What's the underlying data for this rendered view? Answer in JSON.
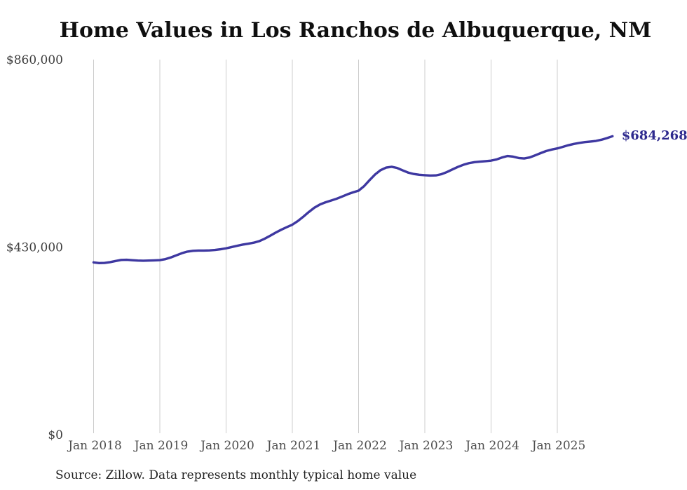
{
  "chart": {
    "title": "Home Values in Los Ranchos de Albuquerque, NM",
    "latest_value_label": "$684,268",
    "source_note": "Source: Zillow. Data represents monthly typical home value",
    "line_color": "#3e38a1",
    "latest_value_label_color": "#2e2a8e",
    "gridline_color": "#cccccc"
  },
  "chart_data": {
    "type": "line",
    "title": "Home Values in Los Ranchos de Albuquerque, NM",
    "xlabel": "",
    "ylabel": "",
    "ylim": [
      0,
      860000
    ],
    "grid": "vertical-only",
    "legend": "none",
    "x_start": "Jan 2018",
    "x_interval": "month",
    "x_ticks": [
      {
        "label": "Jan 2018",
        "month_index": 0
      },
      {
        "label": "Jan 2019",
        "month_index": 12
      },
      {
        "label": "Jan 2020",
        "month_index": 24
      },
      {
        "label": "Jan 2021",
        "month_index": 36
      },
      {
        "label": "Jan 2022",
        "month_index": 48
      },
      {
        "label": "Jan 2023",
        "month_index": 60
      },
      {
        "label": "Jan 2024",
        "month_index": 72
      },
      {
        "label": "Jan 2025",
        "month_index": 84
      }
    ],
    "y_ticks": [
      {
        "label": "$0",
        "value": 0
      },
      {
        "label": "$430,000",
        "value": 430000
      },
      {
        "label": "$860,000",
        "value": 860000
      }
    ],
    "series": [
      {
        "name": "Monthly typical home value",
        "values": [
          395000,
          393400,
          393700,
          395600,
          398200,
          400600,
          400900,
          399900,
          399100,
          398800,
          399100,
          399600,
          400200,
          402400,
          406300,
          411200,
          416100,
          419700,
          421400,
          422000,
          422100,
          422400,
          423400,
          425100,
          427200,
          430100,
          433000,
          435700,
          437800,
          440100,
          443600,
          449300,
          456200,
          463300,
          469900,
          475800,
          481400,
          489800,
          499900,
          510600,
          520400,
          527700,
          532700,
          536600,
          540800,
          545800,
          551100,
          555600,
          559400,
          569800,
          583600,
          596700,
          606600,
          612300,
          614200,
          611400,
          605900,
          600800,
          597600,
          595800,
          594900,
          594100,
          594400,
          597200,
          602100,
          608100,
          613900,
          618800,
          622500,
          624800,
          626100,
          627100,
          628300,
          631000,
          635500,
          638900,
          637400,
          634300,
          633200,
          635600,
          640500,
          645600,
          650400,
          653700,
          656300,
          659900,
          663600,
          666600,
          668900,
          670800,
          672100,
          673500,
          676200,
          680000,
          684268
        ]
      }
    ],
    "annotation": {
      "text": "$684,268",
      "attached_to": "last-point"
    }
  }
}
